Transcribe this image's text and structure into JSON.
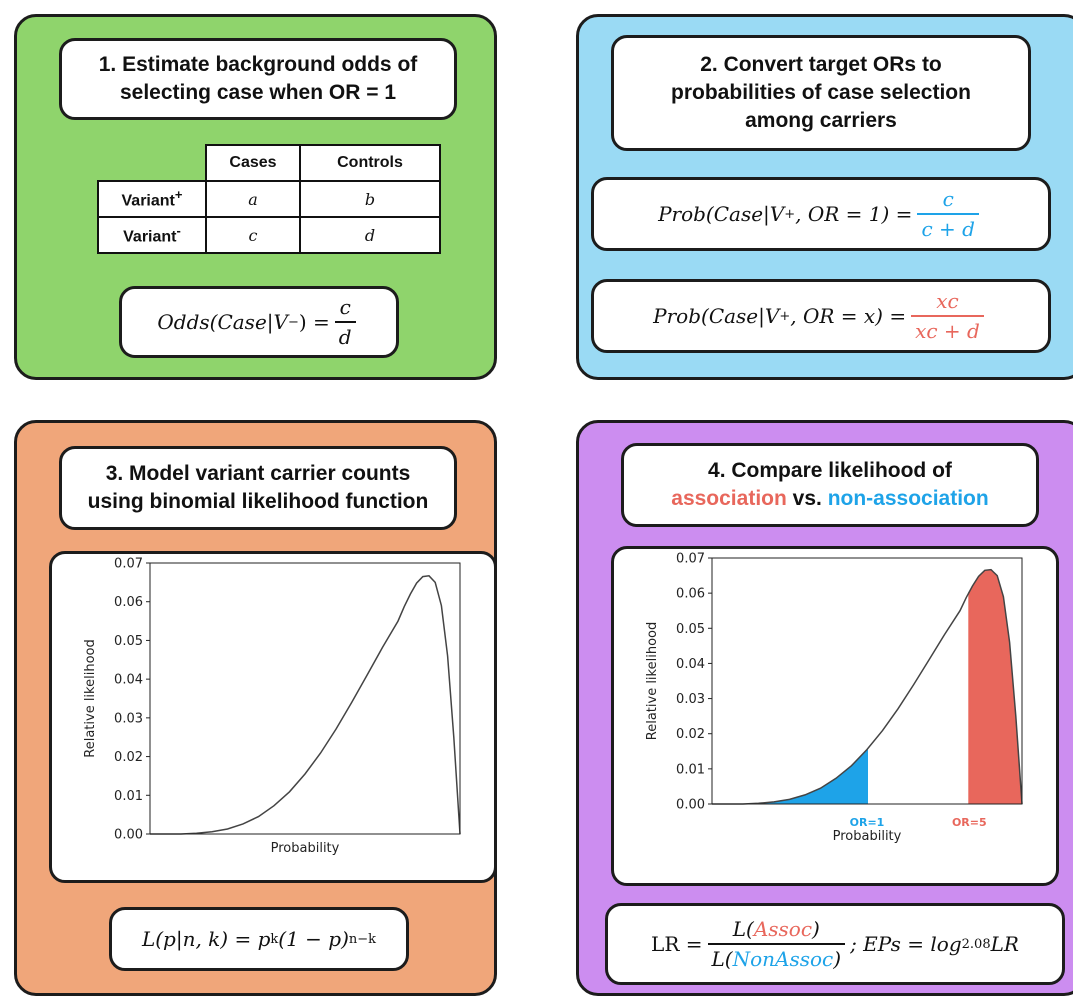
{
  "panel1": {
    "title_line1": "1. Estimate background odds of",
    "title_line2": "selecting case when OR = 1",
    "table": {
      "col_headers": [
        "Cases",
        "Controls"
      ],
      "row_headers": [
        "Variant",
        "Variant"
      ],
      "row_superscripts": [
        "+",
        "-"
      ],
      "cells": [
        [
          "a",
          "b"
        ],
        [
          "c",
          "d"
        ]
      ]
    },
    "equation": {
      "lhs": "Odds(Case|V",
      "lhs_sup": "−",
      "lhs_close": ") =",
      "num": "c",
      "den": "d"
    }
  },
  "panel2": {
    "title_line1": "2. Convert target ORs to",
    "title_line2": "probabilities of case selection",
    "title_line3": "among carriers",
    "eq1": {
      "lhs": "Prob(Case|V",
      "sup": "+",
      "rest": ", OR = 1) =",
      "num": "c",
      "den": "c + d"
    },
    "eq2": {
      "lhs": "Prob(Case|V",
      "sup": "+",
      "rest": ", OR = x) =",
      "num": "xc",
      "den": "xc + d"
    }
  },
  "panel3": {
    "title_line1": "3. Model variant carrier counts",
    "title_line2": "using binomial likelihood function",
    "equation": {
      "lhs": "L(p|n, k) = p",
      "k": "k",
      "mid": "(1 − p)",
      "exp": "n−k"
    }
  },
  "panel4": {
    "title_line1": "4. Compare likelihood of",
    "title_word1": "association",
    "title_vs": " vs. ",
    "title_word2": "non-association",
    "equation": {
      "lhs": "LR =",
      "num_pre": "L(",
      "num_word": "Assoc",
      "num_post": ")",
      "den_pre": "L(",
      "den_word": "NonAssoc",
      "den_post": ")",
      "rest": "; EPs = log",
      "base": "2.08",
      "end": "LR"
    }
  },
  "chart_data": [
    {
      "type": "line",
      "xlabel": "Probability",
      "ylabel": "Relative likelihood",
      "ylim": [
        0,
        0.07
      ],
      "yticks": [
        "0.00",
        "0.01",
        "0.02",
        "0.03",
        "0.04",
        "0.05",
        "0.06",
        "0.07"
      ],
      "x": [
        0.0,
        0.05,
        0.1,
        0.15,
        0.2,
        0.25,
        0.3,
        0.35,
        0.4,
        0.45,
        0.5,
        0.55,
        0.6,
        0.65,
        0.7,
        0.75,
        0.8,
        0.82,
        0.84,
        0.86,
        0.88,
        0.9,
        0.92,
        0.94,
        0.96,
        0.98,
        1.0
      ],
      "y": [
        0.0,
        0.0,
        0.0,
        0.0002,
        0.0006,
        0.0013,
        0.0026,
        0.0045,
        0.0073,
        0.0109,
        0.0155,
        0.0209,
        0.0271,
        0.0339,
        0.041,
        0.0482,
        0.055,
        0.0587,
        0.062,
        0.0648,
        0.0665,
        0.0667,
        0.065,
        0.059,
        0.046,
        0.025,
        0.0
      ],
      "grid": false
    },
    {
      "type": "area",
      "xlabel": "Probability",
      "ylabel": "Relative likelihood",
      "ylim": [
        0,
        0.07
      ],
      "yticks": [
        "0.00",
        "0.01",
        "0.02",
        "0.03",
        "0.04",
        "0.05",
        "0.06",
        "0.07"
      ],
      "x": [
        0.0,
        0.05,
        0.1,
        0.15,
        0.2,
        0.25,
        0.3,
        0.35,
        0.4,
        0.45,
        0.5,
        0.55,
        0.6,
        0.65,
        0.7,
        0.75,
        0.8,
        0.82,
        0.84,
        0.86,
        0.88,
        0.9,
        0.92,
        0.94,
        0.96,
        0.98,
        1.0
      ],
      "y": [
        0.0,
        0.0,
        0.0,
        0.0002,
        0.0006,
        0.0013,
        0.0026,
        0.0045,
        0.0073,
        0.0109,
        0.0155,
        0.0209,
        0.0271,
        0.0339,
        0.041,
        0.0482,
        0.055,
        0.0587,
        0.062,
        0.0648,
        0.0665,
        0.0667,
        0.065,
        0.059,
        0.046,
        0.025,
        0.0
      ],
      "markers": [
        {
          "label": "OR=1",
          "x": 0.5,
          "color": "#1ea3e8",
          "shade": "left"
        },
        {
          "label": "OR=5",
          "x": 0.83,
          "color": "#e8675c",
          "shade": "right"
        }
      ],
      "grid": false
    }
  ]
}
